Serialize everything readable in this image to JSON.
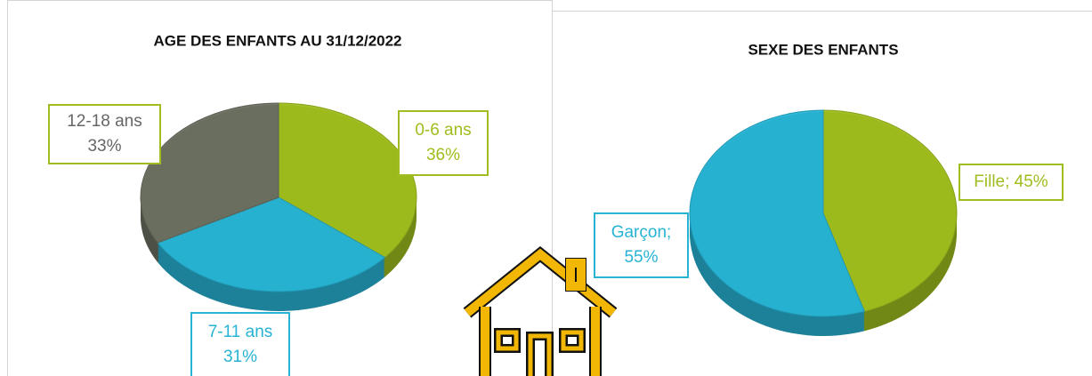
{
  "chart_data": [
    {
      "type": "pie",
      "title": "AGE DES ENFANTS AU 31/12/2022",
      "categories": [
        "0-6 ans",
        "7-11 ans",
        "12-18 ans"
      ],
      "values": [
        36,
        31,
        33
      ],
      "value_labels": [
        "36%",
        "31%",
        "33%"
      ],
      "colors": [
        "#9fbd1e",
        "#27b3d4",
        "#6b7061"
      ]
    },
    {
      "type": "pie",
      "title": "SEXE DES ENFANTS",
      "values": [
        45,
        55
      ],
      "value_labels": [
        "Fille; 45%",
        "Garçon; 55%"
      ],
      "colors": [
        "#9fbd1e",
        "#27b3d4"
      ]
    }
  ]
}
